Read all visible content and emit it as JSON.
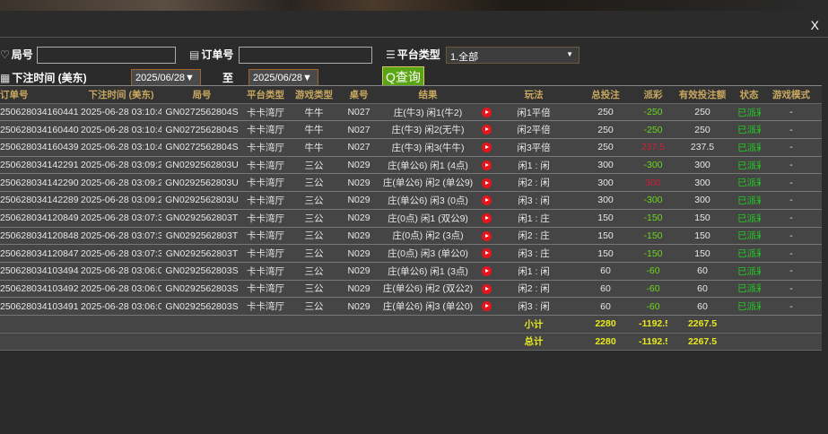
{
  "close_label": "X",
  "filters": {
    "round_label": "局号",
    "order_label": "订单号",
    "platform_label": "平台类型",
    "platform_value": "1.全部",
    "time_label": "下注时间 (美东)",
    "date_from": "2025/06/28▼",
    "to_label": "至",
    "date_to": "2025/06/28▼",
    "query_label": "查询"
  },
  "table": {
    "headers": [
      "订单号",
      "下注时间 (美东)",
      "局号",
      "平台类型",
      "游戏类型",
      "桌号",
      "结果",
      "",
      "玩法",
      "总投注",
      "派彩",
      "有效投注额",
      "状态",
      "游戏模式"
    ],
    "rows": [
      [
        "250628034160441",
        "2025-06-28 03:10:48",
        "GN0272562804S",
        "卡卡湾厅",
        "牛牛",
        "N027",
        "庄(牛3) 闲1(牛2)",
        "闲1平倍",
        "250",
        "-250",
        "250",
        "已派彩",
        "-"
      ],
      [
        "250628034160440",
        "2025-06-28 03:10:48",
        "GN0272562804S",
        "卡卡湾厅",
        "牛牛",
        "N027",
        "庄(牛3) 闲2(无牛)",
        "闲2平倍",
        "250",
        "-250",
        "250",
        "已派彩",
        "-"
      ],
      [
        "250628034160439",
        "2025-06-28 03:10:48",
        "GN0272562804S",
        "卡卡湾厅",
        "牛牛",
        "N027",
        "庄(牛3) 闲3(牛牛)",
        "闲3平倍",
        "250",
        "237.5",
        "237.5",
        "已派彩",
        "-"
      ],
      [
        "250628034142291",
        "2025-06-28 03:09:25",
        "GN0292562803U",
        "卡卡湾厅",
        "三公",
        "N029",
        "庄(单公6) 闲1 (4点)",
        "闲1 : 闲",
        "300",
        "-300",
        "300",
        "已派彩",
        "-"
      ],
      [
        "250628034142290",
        "2025-06-28 03:09:25",
        "GN0292562803U",
        "卡卡湾厅",
        "三公",
        "N029",
        "庄(单公6) 闲2 (单公9)",
        "闲2 : 闲",
        "300",
        "300",
        "300",
        "已派彩",
        "-"
      ],
      [
        "250628034142289",
        "2025-06-28 03:09:25",
        "GN0292562803U",
        "卡卡湾厅",
        "三公",
        "N029",
        "庄(单公6) 闲3 (0点)",
        "闲3 : 闲",
        "300",
        "-300",
        "300",
        "已派彩",
        "-"
      ],
      [
        "250628034120849",
        "2025-06-28 03:07:32",
        "GN0292562803T",
        "卡卡湾厅",
        "三公",
        "N029",
        "庄(0点) 闲1 (双公9)",
        "闲1 : 庄",
        "150",
        "-150",
        "150",
        "已派彩",
        "-"
      ],
      [
        "250628034120848",
        "2025-06-28 03:07:32",
        "GN0292562803T",
        "卡卡湾厅",
        "三公",
        "N029",
        "庄(0点) 闲2 (3点)",
        "闲2 : 庄",
        "150",
        "-150",
        "150",
        "已派彩",
        "-"
      ],
      [
        "250628034120847",
        "2025-06-28 03:07:32",
        "GN0292562803T",
        "卡卡湾厅",
        "三公",
        "N029",
        "庄(0点) 闲3 (单公0)",
        "闲3 : 庄",
        "150",
        "-150",
        "150",
        "已派彩",
        "-"
      ],
      [
        "250628034103494",
        "2025-06-28 03:06:09",
        "GN0292562803S",
        "卡卡湾厅",
        "三公",
        "N029",
        "庄(单公6) 闲1 (3点)",
        "闲1 : 闲",
        "60",
        "-60",
        "60",
        "已派彩",
        "-"
      ],
      [
        "250628034103492",
        "2025-06-28 03:06:09",
        "GN0292562803S",
        "卡卡湾厅",
        "三公",
        "N029",
        "庄(单公6) 闲2 (双公2)",
        "闲2 : 闲",
        "60",
        "-60",
        "60",
        "已派彩",
        "-"
      ],
      [
        "250628034103491",
        "2025-06-28 03:06:09",
        "GN0292562803S",
        "卡卡湾厅",
        "三公",
        "N029",
        "庄(单公6) 闲3 (单公0)",
        "闲3 : 闲",
        "60",
        "-60",
        "60",
        "已派彩",
        "-"
      ]
    ],
    "subtotal": {
      "label": "小计",
      "total_bet": "2280",
      "payout": "-1192.5",
      "valid_bet": "2267.5"
    },
    "total": {
      "label": "总计",
      "total_bet": "2280",
      "payout": "-1192.5",
      "valid_bet": "2267.5"
    }
  },
  "colors": {
    "negative": "#6bd61a",
    "positive": "#d0203a",
    "status": "#22cc22",
    "header": "#c8a860",
    "summary": "#e8e820",
    "query_button": "#5aa514"
  }
}
